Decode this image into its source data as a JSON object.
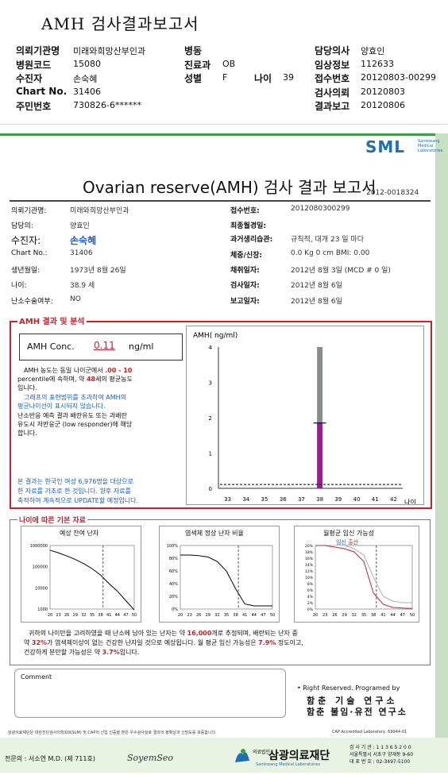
{
  "summary": {
    "title": "AMH 검사결과보고서",
    "rows": [
      {
        "l1": "의뢰기관명",
        "v1": "미래와희망산부인과",
        "l2": "병동",
        "v2": "",
        "l3": "",
        "v3": "",
        "l4": "담당의사",
        "v4": "양효인"
      },
      {
        "l1": "병원코드",
        "v1": "15080",
        "l2": "진료과",
        "v2": "OB",
        "l3": "",
        "v3": "",
        "l4": "임상정보",
        "v4": "112633"
      },
      {
        "l1": "수진자",
        "v1": "손숙혜",
        "l2": "성별",
        "v2": "F",
        "l3": "나이",
        "v3": "39",
        "l4": "접수번호",
        "v4": "20120803-00299"
      },
      {
        "l1": "Chart No.",
        "v1": "31406",
        "l2": "",
        "v2": "",
        "l3": "",
        "v3": "",
        "l4": "검사의뢰",
        "v4": "20120803"
      },
      {
        "l1": "주민번호",
        "v1": "730826-6******",
        "l2": "",
        "v2": "",
        "l3": "",
        "v3": "",
        "l4": "결과보고",
        "v4": "20120806"
      }
    ]
  },
  "sheet": {
    "logo": "SML",
    "logo_sub": "Samkwang Medical Laboratories",
    "title": "Ovarian reserve(AMH) 검사 결과 보고서",
    "report_no": "2012-0018324",
    "left_info": [
      {
        "label": "의뢰기관명:",
        "value": "미래와희망산부인과"
      },
      {
        "label": "담당의:",
        "value": "양효인"
      },
      {
        "label": "수진자:",
        "value": "손숙혜"
      },
      {
        "label": "Chart No.:",
        "value": "31406"
      },
      {
        "label": "생년월일:",
        "value": "1973년 8월 26일"
      },
      {
        "label": "나이:",
        "value": "38.9 세"
      },
      {
        "label": "난소수술여부:",
        "value": "NO"
      }
    ],
    "right_info": [
      {
        "label": "접수번호:",
        "value": "2012080300299"
      },
      {
        "label": "최종월경일:",
        "value": ""
      },
      {
        "label": "과거생리습관:",
        "value": "규칙적, 대개   23 일 마다"
      },
      {
        "label": "체중/신장:",
        "value": "0.0 Kg        0 cm    BMI:   0.00"
      },
      {
        "label": "채취일자:",
        "value": "2012년 8월 3일      (MCD #  0 일)"
      },
      {
        "label": "검사일자:",
        "value": "2012년 8월 6일"
      },
      {
        "label": "보고일자:",
        "value": "2012년 8월 6일"
      }
    ],
    "amh_section": "AMH 결과 및 분석",
    "conc_label": "AMH Conc.",
    "conc_value": "0.11",
    "conc_unit": "ng/ml",
    "desc1_a": "AMH 농도는 동일 나이군에서",
    "desc1_range": ".00 -  10",
    "desc1_b": "percentile에 속하며, 약",
    "desc1_age": "48",
    "desc1_c": "세의 평균농도",
    "desc1_d": "입니다.",
    "desc2": "그래프의 표현범위를 초과하여 AMH의",
    "desc3": "평균나이선이 표시되지 않습니다.",
    "desc4": "난소반응 예측 결과 배란유도 또는 과배란",
    "desc5": "유도시 저반응군 (low responder)에 해당",
    "desc6": "합니다.",
    "note1": "본 결과는 한국인 여성 6,976명을 대상으로",
    "note2": "한 자료를 기초로 한 것입니다. 향후 자료를",
    "note3": "축적하여 계속적으로 UPDATE할 예정입니다.",
    "basic_section": "나이에 따른 기본 자료",
    "mini1_title": "예상 잔여 난자",
    "mini2_title": "염색체 정상 난자 비율",
    "mini3_title": "월평균 임신 가능성",
    "mini3_legend_a": "임신",
    "mini3_legend_b": "출산",
    "summary_a": "귀하의 나이만을 고려하였을 때 난소에 남아 있는 난자는 약",
    "summary_eggs": "16,000",
    "summary_b": "개로 추정되며, 배란되는 난자 중",
    "summary_c": "약",
    "summary_pct1": "32%",
    "summary_d": "가 염색체이상이 없는 건강한 난자일 것으로 예상됩니다. 월 평균 임신 가능성은",
    "summary_pct2": "7.9%",
    "summary_e": "정도이고,",
    "summary_f": "건강하게 분만할 가능성은 약",
    "summary_pct3": "3.7%",
    "summary_g": "입니다.",
    "comment_label": "Comment",
    "rights": "• Right Reserved. Programed by",
    "org1": "함춘 기술 연구소",
    "org2": "함춘 불임·유전 연구소",
    "foot_note": "삼광의료재단은 대한진단검사의학회(KSLM) 및 CAP의 신입 인증을 받은 우수검사실로 결과의 정확성과 신빙도를 보증합니다.",
    "cap": "CAP  Accredited  Laboratory,  69944-01",
    "doctor": "전문의 : 서소연 M.D. (제 711호)",
    "signature": "SoyemSeo",
    "sw_name": "삼광의료재단",
    "sw_prefix": "의료법인",
    "sw_sub": "Samkwang Medical Laboratories",
    "addr1": "검 사 기 관 : 1 1 3 6 5 2 0 0",
    "addr2": "서울특별시 서초구 양재동 9-60",
    "addr3": "대 표 번 호 : 02-3497-5100"
  },
  "chart_data": [
    {
      "type": "bar",
      "ylabel": "AMH( ng/ml)",
      "xlabel": "나이",
      "categories": [
        "33",
        "34",
        "35",
        "36",
        "37",
        "38",
        "39",
        "40",
        "41",
        "42"
      ],
      "ylim": [
        0,
        4
      ],
      "yticks": [
        0,
        1,
        2,
        3,
        4
      ],
      "highlight_category": "38",
      "grey_range": [
        1.85,
        4.0
      ],
      "purple_value": 1.85,
      "reference_line": 0.11,
      "grid": false
    },
    {
      "type": "line",
      "title": "예상 잔여 난자",
      "x": [
        20,
        23,
        26,
        29,
        32,
        35,
        38,
        41,
        44,
        47,
        50
      ],
      "xticks": [
        "20",
        "23",
        "26",
        "29",
        "32",
        "35",
        "38",
        "41",
        "44",
        "47",
        "50"
      ],
      "yscale": "log",
      "yticks": [
        "1000000",
        "100000",
        "10000",
        "1000"
      ],
      "y": [
        600000,
        450000,
        320000,
        220000,
        140000,
        80000,
        40000,
        16000,
        7000,
        2500,
        900
      ],
      "marker_age": 38.9
    },
    {
      "type": "line",
      "title": "염색체 정상 난자 비율",
      "x": [
        20,
        23,
        26,
        29,
        32,
        35,
        38,
        41,
        44,
        47,
        50
      ],
      "xticks": [
        "20",
        "23",
        "26",
        "29",
        "32",
        "35",
        "38",
        "41",
        "44",
        "47",
        "50"
      ],
      "yticks": [
        "100%",
        "80%",
        "60%",
        "40%",
        "20%",
        "0%"
      ],
      "y": [
        85,
        85,
        84,
        82,
        75,
        60,
        32,
        8,
        5,
        5,
        5
      ],
      "marker_age": 38.9
    },
    {
      "type": "line",
      "title": "월평균 임신 가능성",
      "x": [
        20,
        23,
        26,
        29,
        32,
        35,
        38,
        41,
        44,
        47,
        50
      ],
      "xticks": [
        "20",
        "23",
        "26",
        "29",
        "32",
        "35",
        "38",
        "41",
        "44",
        "47",
        "50"
      ],
      "yticks": [
        "20%",
        "18%",
        "16%",
        "14%",
        "12%",
        "10%",
        "8%",
        "6%",
        "4%",
        "2%",
        "0%"
      ],
      "series": [
        {
          "name": "임신",
          "values": [
            21,
            21,
            20.5,
            20,
            19,
            17,
            10,
            4,
            2.5,
            2,
            2
          ]
        },
        {
          "name": "출산",
          "values": [
            20,
            20,
            19.5,
            19,
            18,
            15,
            5,
            1.5,
            0.5,
            0.3,
            0.2
          ]
        }
      ],
      "marker_age": 38.9
    }
  ]
}
